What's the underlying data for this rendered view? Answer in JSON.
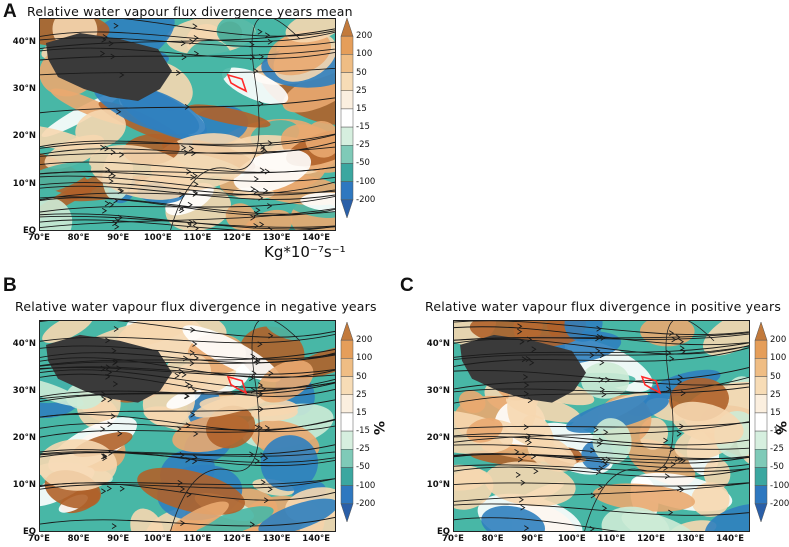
{
  "colors": {
    "div_pos_strong": "#b0622a",
    "div_pos_mid": "#e9a870",
    "div_pos_light": "#f6d7b0",
    "neutral": "#ffffff",
    "conv_light": "#cdebd6",
    "conv_mid": "#48b7a6",
    "conv_strong": "#2f7fbf",
    "plateau": "#3a3a3a",
    "streamline": "#1a1a1a",
    "box": "#ff2a2a"
  },
  "colorbar": {
    "levels": [
      "200",
      "100",
      "50",
      "25",
      "15",
      "-15",
      "-25",
      "-50",
      "-100",
      "-200"
    ],
    "fill_colors": [
      "#c27a3c",
      "#e59e5a",
      "#efbd84",
      "#f7dcb6",
      "#fbefdf",
      "#ffffff",
      "#d6efdf",
      "#7fcab8",
      "#3ba7a0",
      "#2e78c0",
      "#2a5fa8"
    ]
  },
  "axes": {
    "lon_ticks": [
      "70°E",
      "80°E",
      "90°E",
      "100°E",
      "110°E",
      "120°E",
      "130°E",
      "140°E"
    ],
    "lat_ticks": [
      "40°N",
      "30°N",
      "20°N",
      "10°N",
      "EQ"
    ]
  },
  "panels": [
    {
      "letter": "A",
      "title": "Relative water vapour flux divergence years mean",
      "unit": "Kg*10⁻⁷s⁻¹",
      "pct": ""
    },
    {
      "letter": "B",
      "title": "Relative water vapour flux divergence in negative years",
      "unit": "",
      "pct": "%"
    },
    {
      "letter": "C",
      "title": "Relative water vapour flux divergence in positive years",
      "unit": "",
      "pct": "%"
    }
  ],
  "chart_data": [
    {
      "type": "heatmap",
      "title": "Relative water vapour flux divergence years mean",
      "x_ticks": [
        "70°E",
        "80°E",
        "90°E",
        "100°E",
        "110°E",
        "120°E",
        "130°E",
        "140°E"
      ],
      "y_ticks": [
        "40°N",
        "30°N",
        "20°N",
        "10°N",
        "EQ"
      ],
      "xlim": [
        70,
        145
      ],
      "ylim": [
        0,
        45
      ],
      "color_levels": [
        200,
        100,
        50,
        25,
        15,
        -15,
        -25,
        -50,
        -100,
        -200
      ],
      "unit": "Kg*10⁻⁷s⁻¹"
    },
    {
      "type": "heatmap",
      "title": "Relative water vapour flux divergence in negative years",
      "x_ticks": [
        "70°E",
        "80°E",
        "90°E",
        "100°E",
        "110°E",
        "120°E",
        "130°E",
        "140°E"
      ],
      "y_ticks": [
        "40°N",
        "30°N",
        "20°N",
        "10°N",
        "EQ"
      ],
      "xlim": [
        70,
        145
      ],
      "ylim": [
        0,
        45
      ],
      "color_levels": [
        200,
        100,
        50,
        25,
        15,
        -15,
        -25,
        -50,
        -100,
        -200
      ],
      "unit": "%"
    },
    {
      "type": "heatmap",
      "title": "Relative water vapour flux divergence in positive years",
      "x_ticks": [
        "70°E",
        "80°E",
        "90°E",
        "100°E",
        "110°E",
        "120°E",
        "130°E",
        "140°E"
      ],
      "y_ticks": [
        "40°N",
        "30°N",
        "20°N",
        "10°N",
        "EQ"
      ],
      "xlim": [
        70,
        145
      ],
      "ylim": [
        0,
        45
      ],
      "color_levels": [
        200,
        100,
        50,
        25,
        15,
        -15,
        -25,
        -50,
        -100,
        -200
      ],
      "unit": "%"
    }
  ]
}
